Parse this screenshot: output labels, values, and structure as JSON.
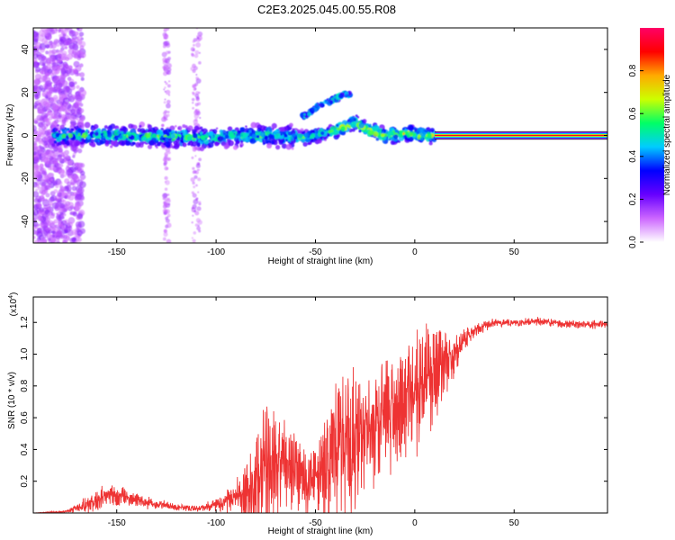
{
  "figure_title": "C2E3.2025.045.00.55.R08",
  "chart_data": [
    {
      "type": "heatmap",
      "xlabel": "Height of straight line (km)",
      "ylabel": "Frequency (Hz)",
      "xlim": [
        -192,
        97
      ],
      "ylim": [
        -50,
        50
      ],
      "x_ticks": [
        -150,
        -100,
        -50,
        0,
        50
      ],
      "y_ticks": [
        -40,
        -20,
        0,
        20,
        40
      ],
      "colorbar": {
        "label": "Normalized spectral amplitude",
        "range": [
          0,
          1
        ],
        "ticks": [
          0.0,
          0.2,
          0.4,
          0.6,
          0.8
        ],
        "tick_labels": [
          "0.0",
          "0.2",
          "0.4",
          "0.6",
          "0.8"
        ],
        "colormap": [
          "#ffffff",
          "#cc66ff",
          "#6600ff",
          "#0000ff",
          "#00ccff",
          "#00ff66",
          "#ccff00",
          "#ffaa00",
          "#ff0000",
          "#ff0066"
        ]
      },
      "trace_center": [
        {
          "x": -190,
          "freq": 0
        },
        {
          "x": -150,
          "freq": 0
        },
        {
          "x": -110,
          "freq": -1
        },
        {
          "x": -75,
          "freq": 0
        },
        {
          "x": -55,
          "freq": -1
        },
        {
          "x": -45,
          "freq": 1
        },
        {
          "x": -35,
          "freq": 4
        },
        {
          "x": -30,
          "freq": 6
        },
        {
          "x": -25,
          "freq": 3
        },
        {
          "x": -15,
          "freq": 0
        },
        {
          "x": -5,
          "freq": 1
        },
        {
          "x": 5,
          "freq": 0
        },
        {
          "x": 10,
          "freq": 0
        },
        {
          "x": 97,
          "freq": 0
        }
      ],
      "branch": [
        {
          "x": -55,
          "freq": 9
        },
        {
          "x": -50,
          "freq": 13
        },
        {
          "x": -40,
          "freq": 17
        },
        {
          "x": -35,
          "freq": 19
        }
      ],
      "notes_strong_line_start_km": 10
    },
    {
      "type": "line",
      "xlabel": "Height of straight line (km)",
      "ylabel": "SNR (10 * v/v)",
      "y_multiplier": "(x10",
      "y_multiplier_exp": "4",
      "xlim": [
        -192,
        97
      ],
      "ylim": [
        0,
        1.36
      ],
      "x_ticks": [
        -150,
        -100,
        -50,
        0,
        50
      ],
      "y_ticks": [
        0.2,
        0.4,
        0.6,
        0.8,
        1.0,
        1.2
      ],
      "color": "#ee3333",
      "series": [
        {
          "x": [
            -192,
            -175,
            -165,
            -158,
            -150,
            -140,
            -130,
            -120,
            -110,
            -100,
            -90,
            -80,
            -75,
            -70,
            -66,
            -60,
            -55,
            -50,
            -45,
            -40,
            -35,
            -30,
            -25,
            -20,
            -15,
            -10,
            -5,
            0,
            5,
            10,
            15,
            20,
            25,
            30,
            35,
            40,
            50,
            60,
            70,
            80,
            90,
            97
          ],
          "y": [
            0.0,
            0.01,
            0.06,
            0.1,
            0.12,
            0.08,
            0.06,
            0.04,
            0.03,
            0.05,
            0.1,
            0.2,
            0.3,
            0.4,
            0.35,
            0.3,
            0.25,
            0.22,
            0.3,
            0.45,
            0.5,
            0.45,
            0.5,
            0.6,
            0.65,
            0.7,
            0.75,
            0.8,
            0.85,
            0.9,
            0.95,
            1.0,
            1.1,
            1.15,
            1.18,
            1.2,
            1.2,
            1.21,
            1.2,
            1.19,
            1.19,
            1.19
          ],
          "spread": [
            0.0,
            0.01,
            0.06,
            0.08,
            0.08,
            0.05,
            0.04,
            0.03,
            0.02,
            0.05,
            0.12,
            0.35,
            0.55,
            0.45,
            0.35,
            0.3,
            0.3,
            0.3,
            0.35,
            0.5,
            0.6,
            0.55,
            0.5,
            0.5,
            0.45,
            0.45,
            0.4,
            0.45,
            0.45,
            0.4,
            0.3,
            0.15,
            0.08,
            0.05,
            0.04,
            0.03,
            0.03,
            0.03,
            0.03,
            0.03,
            0.03,
            0.03
          ]
        }
      ]
    }
  ]
}
